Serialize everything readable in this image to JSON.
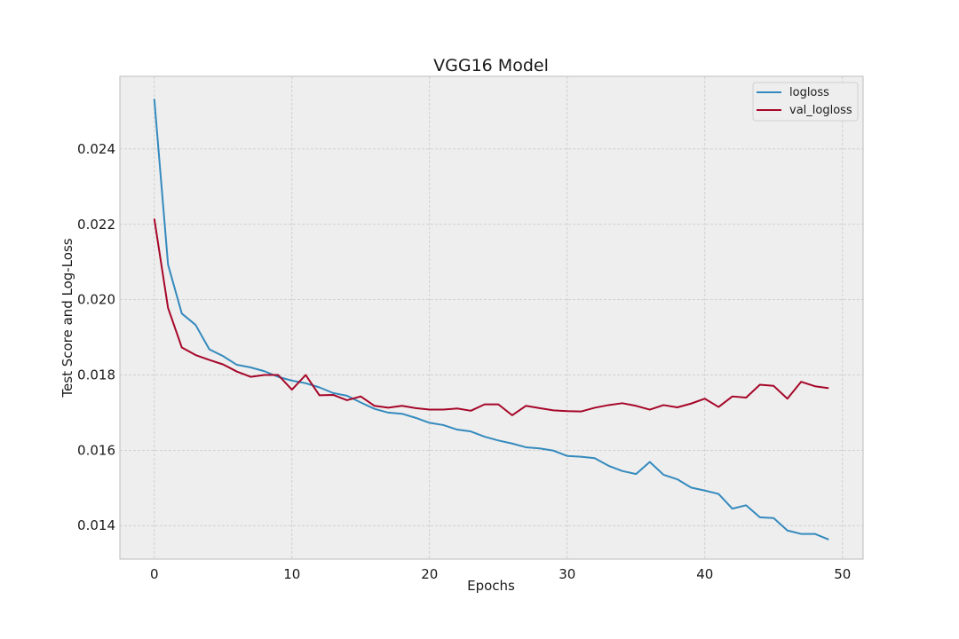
{
  "chart_data": {
    "type": "line",
    "title": "VGG16 Model",
    "xlabel": "Epochs",
    "ylabel": "Test Score and Log-Loss",
    "xlim": [
      -2.5,
      51.5
    ],
    "ylim": [
      0.01311,
      0.02593
    ],
    "x_ticks": [
      0,
      10,
      20,
      30,
      40,
      50
    ],
    "y_ticks": [
      0.014,
      0.016,
      0.018,
      0.02,
      0.022,
      0.024
    ],
    "x_tick_labels": [
      "0",
      "10",
      "20",
      "30",
      "40",
      "50"
    ],
    "y_tick_labels": [
      "0.014",
      "0.016",
      "0.018",
      "0.020",
      "0.022",
      "0.024"
    ],
    "grid": true,
    "legend_position": "top-right",
    "x": [
      0,
      1,
      2,
      3,
      4,
      5,
      6,
      7,
      8,
      9,
      10,
      11,
      12,
      13,
      14,
      15,
      16,
      17,
      18,
      19,
      20,
      21,
      22,
      23,
      24,
      25,
      26,
      27,
      28,
      29,
      30,
      31,
      32,
      33,
      34,
      35,
      36,
      37,
      38,
      39,
      40,
      41,
      42,
      43,
      44,
      45,
      46,
      47,
      48,
      49
    ],
    "series": [
      {
        "name": "logloss",
        "color": "#348ABD",
        "values": [
          0.02533,
          0.02093,
          0.01963,
          0.01933,
          0.01868,
          0.0185,
          0.01827,
          0.0182,
          0.0181,
          0.01795,
          0.01785,
          0.01778,
          0.01767,
          0.01752,
          0.01745,
          0.01727,
          0.0171,
          0.017,
          0.01697,
          0.01686,
          0.01673,
          0.01667,
          0.01655,
          0.0165,
          0.01636,
          0.01626,
          0.01618,
          0.01608,
          0.01605,
          0.01599,
          0.01585,
          0.01583,
          0.01579,
          0.01559,
          0.01545,
          0.01537,
          0.01569,
          0.01535,
          0.01523,
          0.01501,
          0.01493,
          0.01484,
          0.01445,
          0.01454,
          0.01422,
          0.0142,
          0.01387,
          0.01378,
          0.01378,
          0.01363
        ]
      },
      {
        "name": "val_logloss",
        "color": "#A60628",
        "values": [
          0.02215,
          0.01978,
          0.01873,
          0.01853,
          0.0184,
          0.01828,
          0.01809,
          0.01795,
          0.018,
          0.018,
          0.01761,
          0.018,
          0.01746,
          0.01747,
          0.01733,
          0.01743,
          0.01718,
          0.01713,
          0.01718,
          0.01712,
          0.01708,
          0.01708,
          0.01711,
          0.01705,
          0.01722,
          0.01722,
          0.01693,
          0.01718,
          0.01712,
          0.01706,
          0.01704,
          0.01703,
          0.01713,
          0.0172,
          0.01725,
          0.01718,
          0.01708,
          0.0172,
          0.01714,
          0.01724,
          0.01737,
          0.01715,
          0.01743,
          0.0174,
          0.01774,
          0.01771,
          0.01737,
          0.01782,
          0.0177,
          0.01765
        ]
      }
    ]
  },
  "colors": {
    "plot_background": "#eeeeee",
    "grid": "#c8c8c8",
    "frame": "#bcbcbc"
  }
}
